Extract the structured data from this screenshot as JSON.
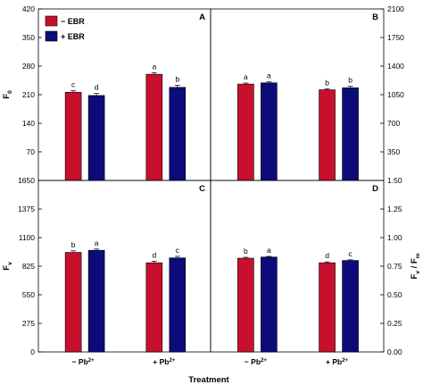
{
  "chart_data": {
    "type": "bar",
    "xlabel": "Treatment",
    "x_categories": [
      "− Pb",
      "+ Pb"
    ],
    "x_superscript": "2+",
    "series_names": [
      "− EBR",
      "+ EBR"
    ],
    "colors": {
      "minus_ebr": "#c8102e",
      "plus_ebr": "#0b0b7a",
      "frame": "#000000"
    },
    "legend_position": "top-left",
    "panels": [
      {
        "id": "A",
        "ylabel": "F",
        "ylabel_sub": "0",
        "ylim": [
          0,
          420
        ],
        "ticks": [
          "0",
          "70",
          "140",
          "210",
          "280",
          "350",
          "420"
        ],
        "values": [
          [
            216,
            260
          ],
          [
            208,
            228
          ]
        ],
        "errors": [
          [
            4,
            4
          ],
          [
            5,
            5
          ]
        ],
        "letters": [
          [
            "c",
            "a"
          ],
          [
            "d",
            "b"
          ]
        ]
      },
      {
        "id": "B",
        "ylabel": "",
        "ylim": [
          0,
          2100
        ],
        "ticks": [
          "0",
          "350",
          "700",
          "1050",
          "1400",
          "1750",
          "2100"
        ],
        "values": [
          [
            1180,
            1110
          ],
          [
            1195,
            1135
          ]
        ],
        "errors": [
          [
            12,
            12
          ],
          [
            12,
            18
          ]
        ],
        "letters": [
          [
            "a",
            "b"
          ],
          [
            "a",
            "b"
          ]
        ]
      },
      {
        "id": "C",
        "ylabel": "F",
        "ylabel_sub": "v",
        "ylim": [
          0,
          1650
        ],
        "ticks": [
          "0",
          "275",
          "550",
          "825",
          "1100",
          "1375",
          "1650"
        ],
        "values": [
          [
            958,
            858
          ],
          [
            978,
            905
          ]
        ],
        "errors": [
          [
            15,
            15
          ],
          [
            12,
            15
          ]
        ],
        "letters": [
          [
            "b",
            "d"
          ],
          [
            "a",
            "c"
          ]
        ]
      },
      {
        "id": "D",
        "ylabel": "F",
        "ylabel_sub": "v",
        "ylabel_tail": " / F",
        "ylabel_tail_sub": "m",
        "ylim": [
          0,
          1.5
        ],
        "ticks": [
          "0.00",
          "0.25",
          "0.50",
          "0.75",
          "1.00",
          "1.25",
          "1.50"
        ],
        "values": [
          [
            0.82,
            0.78
          ],
          [
            0.83,
            0.8
          ]
        ],
        "errors": [
          [
            0.008,
            0.008
          ],
          [
            0.006,
            0.006
          ]
        ],
        "letters": [
          [
            "b",
            "d"
          ],
          [
            "a",
            "c"
          ]
        ]
      }
    ]
  },
  "right_axis_labels": {
    "top": "",
    "bottom": "F"
  }
}
